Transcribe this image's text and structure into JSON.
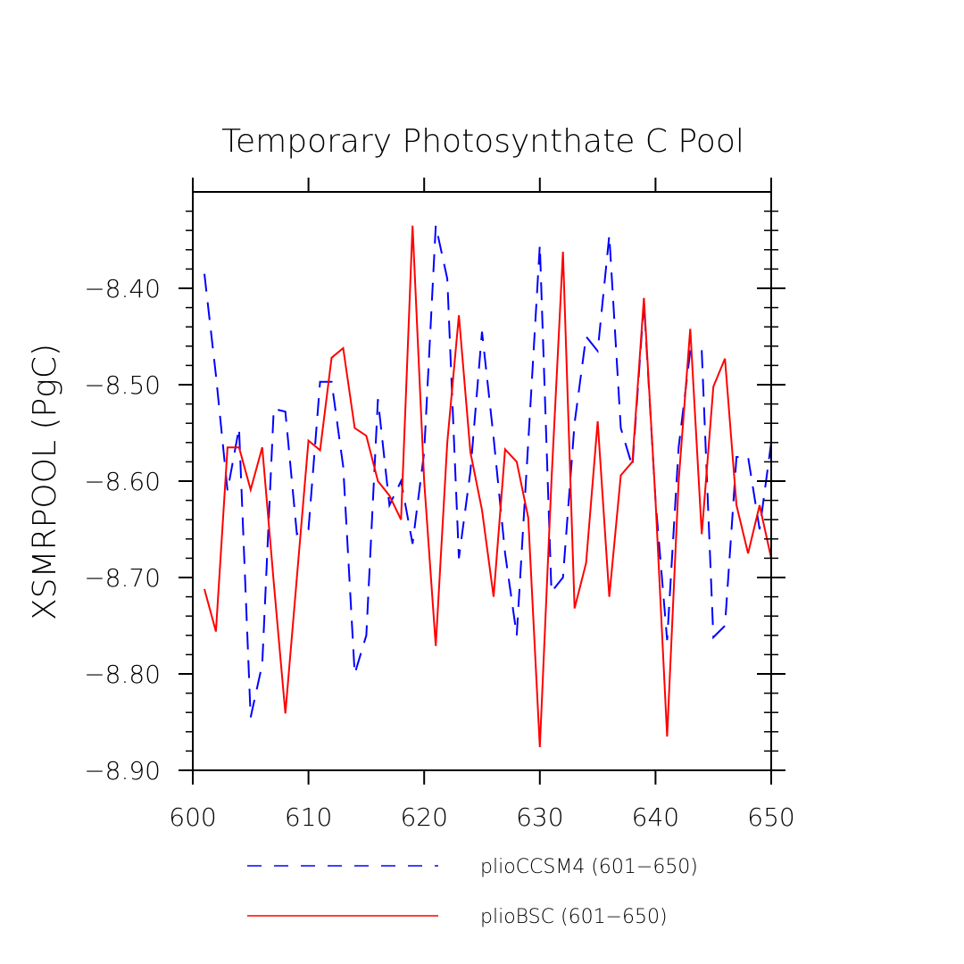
{
  "chart_data": {
    "type": "line",
    "title": "Temporary Photosynthate C Pool",
    "xlabel": "",
    "ylabel": "XSMRPOOL  (PgC)",
    "xlim": [
      600,
      650
    ],
    "ylim": [
      -8.9,
      -8.3
    ],
    "x_ticks": [
      600,
      610,
      620,
      630,
      640,
      650
    ],
    "x_tick_labels": [
      "600",
      "610",
      "620",
      "630",
      "640",
      "650"
    ],
    "y_ticks": [
      -8.9,
      -8.8,
      -8.7,
      -8.6,
      -8.5,
      -8.4
    ],
    "y_tick_labels": [
      "−8.90",
      "−8.80",
      "−8.70",
      "−8.60",
      "−8.50",
      "−8.40"
    ],
    "grid": false,
    "legend_placement": "bottom",
    "x": [
      601,
      602,
      603,
      604,
      605,
      606,
      607,
      608,
      609,
      610,
      611,
      612,
      613,
      614,
      615,
      616,
      617,
      618,
      619,
      620,
      621,
      622,
      623,
      624,
      625,
      626,
      627,
      628,
      629,
      630,
      631,
      632,
      633,
      634,
      635,
      636,
      637,
      638,
      639,
      640,
      641,
      642,
      643,
      644,
      645,
      646,
      647,
      648,
      649,
      650
    ],
    "series": [
      {
        "name": "plioCCSM4 (601−650)",
        "color": "#0000ff",
        "dash": "dashed",
        "values": [
          -8.385,
          -8.49,
          -8.61,
          -8.545,
          -8.845,
          -8.79,
          -8.525,
          -8.528,
          -8.655,
          -8.65,
          -8.497,
          -8.497,
          -8.585,
          -8.8,
          -8.76,
          -8.515,
          -8.625,
          -8.6,
          -8.665,
          -8.57,
          -8.335,
          -8.39,
          -8.68,
          -8.59,
          -8.445,
          -8.555,
          -8.675,
          -8.76,
          -8.56,
          -8.355,
          -8.715,
          -8.7,
          -8.54,
          -8.45,
          -8.465,
          -8.345,
          -8.545,
          -8.585,
          -8.415,
          -8.62,
          -8.765,
          -8.565,
          -8.465,
          -8.465,
          -8.762,
          -8.75,
          -8.575,
          -8.575,
          -8.65,
          -8.56
        ]
      },
      {
        "name": "plioBSC (601−650)",
        "color": "#ff0000",
        "dash": "solid",
        "values": [
          -8.712,
          -8.756,
          -8.565,
          -8.565,
          -8.609,
          -8.565,
          -8.705,
          -8.841,
          -8.7,
          -8.558,
          -8.568,
          -8.472,
          -8.462,
          -8.545,
          -8.553,
          -8.6,
          -8.615,
          -8.64,
          -8.335,
          -8.6,
          -8.771,
          -8.56,
          -8.428,
          -8.57,
          -8.63,
          -8.72,
          -8.567,
          -8.58,
          -8.638,
          -8.876,
          -8.6,
          -8.362,
          -8.732,
          -8.685,
          -8.538,
          -8.72,
          -8.594,
          -8.58,
          -8.41,
          -8.62,
          -8.865,
          -8.6,
          -8.442,
          -8.655,
          -8.502,
          -8.473,
          -8.625,
          -8.675,
          -8.625,
          -8.68
        ]
      }
    ]
  }
}
